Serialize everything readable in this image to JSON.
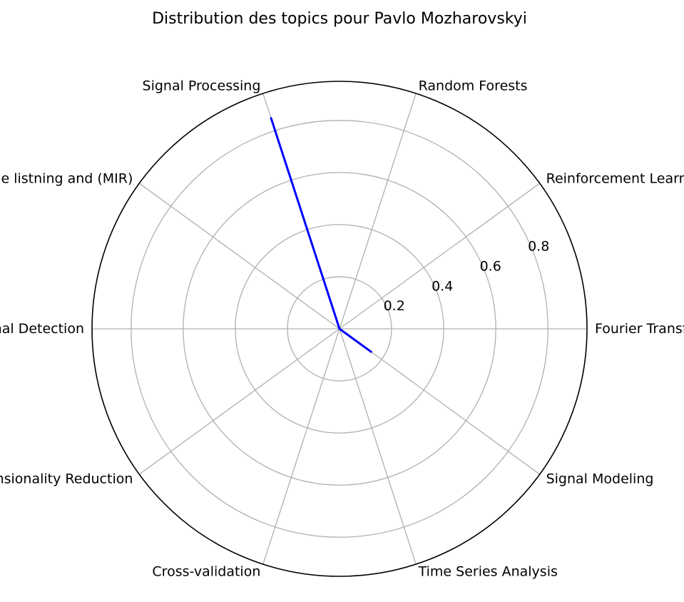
{
  "chart_data": {
    "type": "radar",
    "title": "Distribution des topics pour Pavlo Mozharovskyi",
    "categories": [
      "Fourier Transform",
      "Reinforcement Learning",
      "Random Forests",
      "Signal Processing",
      "Machine listning and (MIR)",
      "Signal Detection",
      "Dimensionality Reduction",
      "Cross-validation",
      "Time Series Analysis",
      "Signal Modeling"
    ],
    "series": [
      {
        "values": [
          0.0,
          0.0,
          0.0,
          0.85,
          0.0,
          0.0,
          0.0,
          0.0,
          0.0,
          0.15
        ],
        "color": "#0000ff"
      }
    ],
    "rmax": 0.95,
    "rticks": [
      0.2,
      0.4,
      0.6,
      0.8
    ],
    "rtick_labels": [
      "0.2",
      "0.4",
      "0.6",
      "0.8"
    ],
    "grid": true,
    "grid_color": "#b0b0b0",
    "frame_color": "#000000"
  }
}
